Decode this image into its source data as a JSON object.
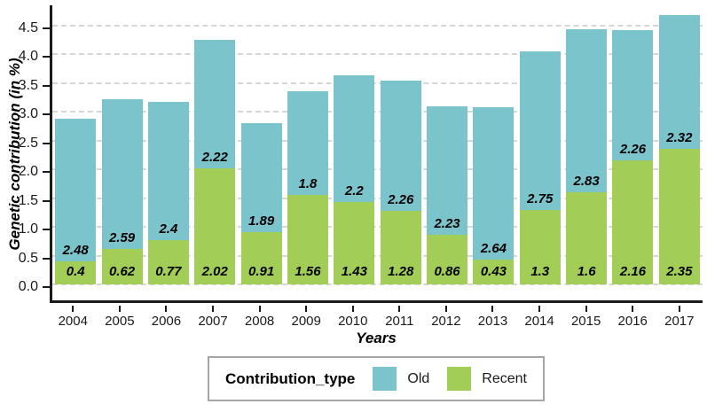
{
  "chart_data": {
    "type": "bar",
    "stacked": true,
    "title": "",
    "xlabel": "Years",
    "ylabel": "Genetic contribution (in %)",
    "categories": [
      "2004",
      "2005",
      "2006",
      "2007",
      "2008",
      "2009",
      "2010",
      "2011",
      "2012",
      "2013",
      "2014",
      "2015",
      "2016",
      "2017"
    ],
    "series": [
      {
        "name": "Old",
        "color": "#7bc4cc",
        "stack_position": "top",
        "values": [
          2.48,
          2.59,
          2.4,
          2.22,
          1.89,
          1.8,
          2.2,
          2.26,
          2.23,
          2.64,
          2.75,
          2.83,
          2.26,
          2.32
        ]
      },
      {
        "name": "Recent",
        "color": "#a2ce58",
        "stack_position": "bottom",
        "values": [
          0.4,
          0.62,
          0.77,
          2.02,
          0.91,
          1.56,
          1.43,
          1.28,
          0.86,
          0.43,
          1.3,
          1.6,
          2.16,
          2.35
        ]
      }
    ],
    "ylim": [
      0,
      4.5
    ],
    "ytick_step": 0.5,
    "grid": "horizontal-dashed",
    "data_labels": "old value above stack boundary, recent value near bar base, bold italic",
    "legend": {
      "title": "Contribution_type",
      "position": "bottom",
      "entries": [
        {
          "label": "Old",
          "color": "#7bc4cc"
        },
        {
          "label": "Recent",
          "color": "#a2ce58"
        }
      ]
    },
    "colors": {
      "axis": "#1a1a1a",
      "gridline": "#d6d6d6",
      "legend_border": "#a6a6a6",
      "background": "#ffffff"
    }
  }
}
